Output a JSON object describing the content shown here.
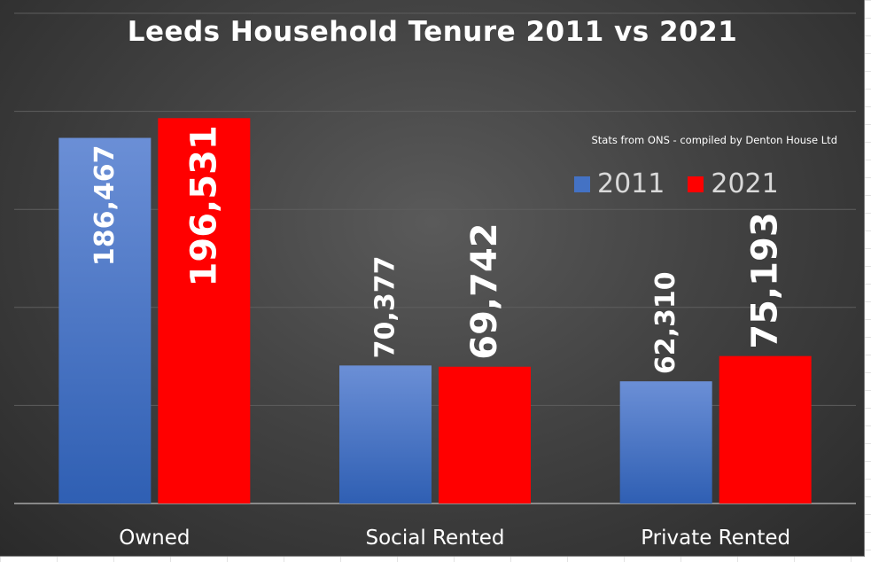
{
  "source_note": "Stats from ONS - compiled by Denton House Ltd",
  "colors": {
    "series_2011": "#4472c4",
    "series_2021": "#ff0000",
    "background": "#3f3f3f",
    "text": "#ffffff"
  },
  "chart_data": {
    "type": "bar",
    "title": "Leeds Household Tenure 2011 vs 2021",
    "xlabel": "",
    "ylabel": "",
    "ylim": [
      0,
      250000
    ],
    "grid": true,
    "legend_position": "top-right",
    "categories": [
      "Owned",
      "Social Rented",
      "Private Rented"
    ],
    "series": [
      {
        "name": "2011",
        "values": [
          186467,
          70377,
          62310
        ],
        "labels": [
          "186,467",
          "70,377",
          "62,310"
        ]
      },
      {
        "name": "2021",
        "values": [
          196531,
          69742,
          75193
        ],
        "labels": [
          "196,531",
          "69,742",
          "75,193"
        ]
      }
    ]
  }
}
